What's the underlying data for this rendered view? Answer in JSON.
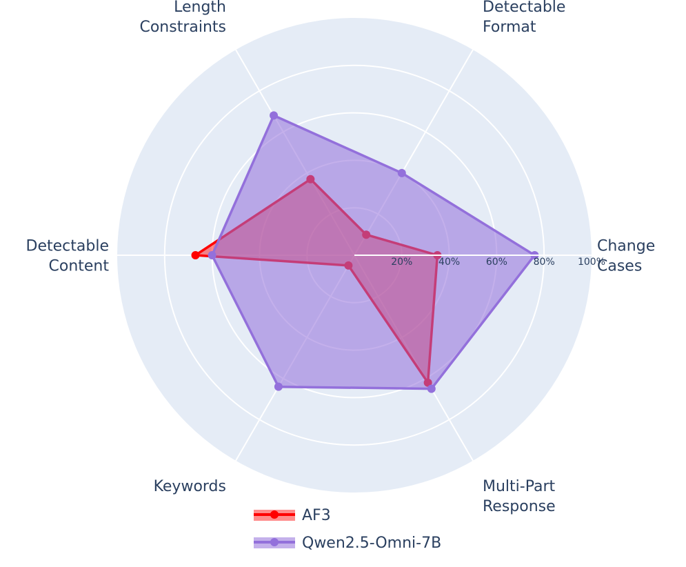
{
  "chart_data": {
    "type": "radar",
    "categories": [
      "Change Cases",
      "Detectable Format",
      "Length Constraints",
      "Detectable Content",
      "Keywords",
      "Multi-Part Response"
    ],
    "category_lines": [
      [
        "Change",
        "Cases"
      ],
      [
        "Detectable",
        "Format"
      ],
      [
        "Length",
        "Constraints"
      ],
      [
        "Detectable",
        "Content"
      ],
      [
        "Keywords"
      ],
      [
        "Multi-Part",
        "Response"
      ]
    ],
    "radial_range": [
      0,
      100
    ],
    "radial_ticks": [
      20,
      40,
      60,
      80,
      100
    ],
    "radial_tick_labels": [
      "20%",
      "40%",
      "60%",
      "80%",
      "100%"
    ],
    "grid": true,
    "legend_position": "bottom",
    "series": [
      {
        "name": "AF3",
        "values": [
          35,
          10,
          37,
          67,
          5,
          62
        ],
        "color": "#ff0000",
        "fill": "rgba(255,0,0,0.45)"
      },
      {
        "name": "Qwen2.5-Omni-7B",
        "values": [
          76,
          40,
          68,
          60,
          64,
          65
        ],
        "color": "#9370db",
        "fill": "rgba(147,112,219,0.55)"
      }
    ]
  }
}
